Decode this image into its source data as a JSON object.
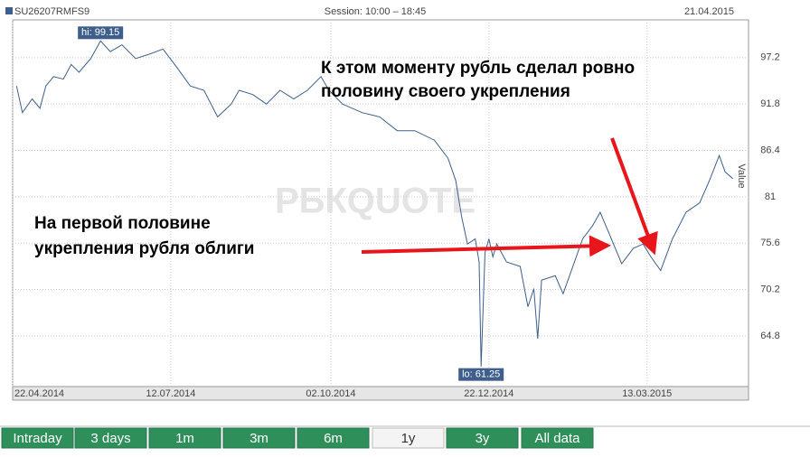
{
  "header": {
    "symbol": "SU26207RMFS9",
    "session": "Session: 10:00 – 18:45",
    "date": "21.04.2015"
  },
  "chart_data": {
    "type": "line",
    "ylabel": "Value",
    "watermark": "РБКQUOTE",
    "annotations": [
      "К этом моменту рубль сделал ровно",
      "половину своего укрепления",
      "На первой половине",
      "укрепления рубля облиги"
    ],
    "x": [
      2,
      5,
      10,
      14,
      17,
      21,
      26,
      30,
      34,
      40,
      45,
      50,
      56,
      63,
      70,
      77,
      84,
      91,
      98,
      105,
      112,
      116,
      123,
      130,
      137,
      144,
      151,
      158,
      162,
      169,
      179,
      188,
      197,
      206,
      216,
      223,
      227,
      230,
      233,
      237,
      239,
      240,
      242,
      244,
      246,
      248,
      253,
      260,
      264,
      267,
      269,
      271,
      278,
      282,
      287,
      292,
      297,
      301,
      306,
      312,
      318,
      323,
      327,
      332,
      338,
      345,
      352,
      357,
      362,
      365,
      369
    ],
    "series": [
      {
        "name": "SU26207RMFS9",
        "color": "#3e5f8c",
        "values": [
          93.9,
          90.8,
          92.4,
          91.3,
          93.9,
          95.0,
          94.7,
          96.4,
          95.5,
          97.1,
          99.15,
          97.9,
          98.7,
          97.1,
          97.6,
          98.2,
          96.1,
          93.9,
          93.4,
          90.3,
          91.8,
          93.4,
          92.9,
          91.8,
          93.4,
          92.4,
          93.4,
          95.0,
          93.4,
          91.8,
          90.8,
          90.3,
          88.7,
          88.7,
          87.6,
          85.5,
          82.9,
          78.7,
          75.5,
          76.1,
          73.4,
          61.25,
          74.5,
          76.1,
          74.0,
          75.5,
          73.4,
          72.9,
          68.2,
          70.3,
          64.5,
          71.3,
          71.8,
          69.7,
          72.9,
          76.1,
          77.6,
          79.2,
          76.5,
          73.2,
          75.0,
          75.5,
          74.0,
          72.4,
          76.1,
          79.2,
          80.3,
          82.9,
          85.8,
          83.9,
          83.1
        ],
        "value_labels": [
          null,
          null,
          null,
          null,
          null,
          null,
          null,
          null,
          null,
          null,
          "hi: 99.15",
          null,
          null,
          null,
          null,
          null,
          null,
          null,
          null,
          null,
          null,
          null,
          null,
          null,
          null,
          null,
          null,
          null,
          null,
          null,
          null,
          null,
          null,
          null,
          null,
          null,
          null,
          null,
          null,
          null,
          null,
          "lo: 61.25",
          null,
          null,
          null,
          null,
          null,
          null,
          null,
          null,
          null,
          null,
          null,
          null,
          null,
          null,
          null,
          null,
          null,
          null,
          null,
          null,
          null,
          null,
          null,
          null,
          null,
          null,
          null,
          null,
          null
        ]
      }
    ],
    "xlim": [
      0,
      377
    ],
    "xticks": [
      {
        "value": 0,
        "label": "22.04.2014"
      },
      {
        "value": 81,
        "label": "12.07.2014"
      },
      {
        "value": 163,
        "label": "02.10.2014"
      },
      {
        "value": 244,
        "label": "22.12.2014"
      },
      {
        "value": 325,
        "label": "13.03.2015"
      }
    ],
    "ylim": [
      58.9,
      101.6
    ],
    "yticks": [
      64.8,
      70.2,
      75.6,
      81,
      86.4,
      91.8,
      97.2
    ],
    "grid": true
  },
  "buttons": [
    "Intraday",
    "3 days",
    "1m",
    "3m",
    "6m",
    "1y",
    "3y",
    "All data"
  ],
  "selected_button": 5
}
